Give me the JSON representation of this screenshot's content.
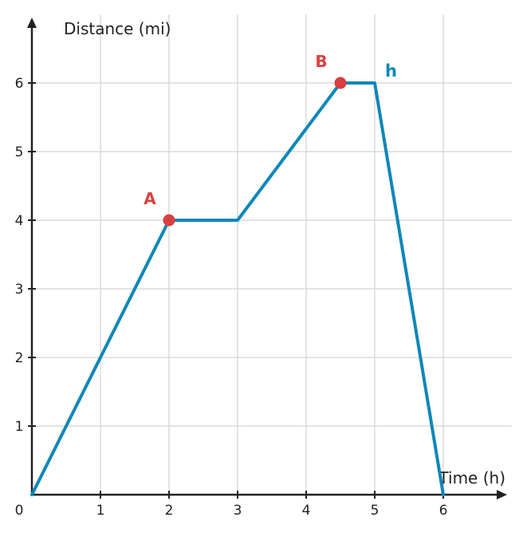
{
  "chart_data": {
    "type": "line",
    "xlabel": "Time (h)",
    "ylabel": "Distance (mi)",
    "xlim": [
      0,
      6.6
    ],
    "ylim": [
      0,
      6.6
    ],
    "grid": true,
    "origin_label": "0",
    "x_ticks": [
      1,
      2,
      3,
      4,
      5,
      6
    ],
    "y_ticks": [
      1,
      2,
      3,
      4,
      5,
      6
    ],
    "series": [
      {
        "name": "h",
        "color": "#0e87b8",
        "x": [
          0,
          2,
          3,
          4.5,
          5,
          6
        ],
        "y": [
          0,
          4,
          4,
          6,
          6,
          0
        ]
      }
    ],
    "points": [
      {
        "label": "A",
        "x": 2,
        "y": 4,
        "color": "#d94040"
      },
      {
        "label": "B",
        "x": 4.5,
        "y": 6,
        "color": "#d94040"
      }
    ],
    "axis_color": "#222222",
    "grid_color": "#d3d3d3"
  }
}
